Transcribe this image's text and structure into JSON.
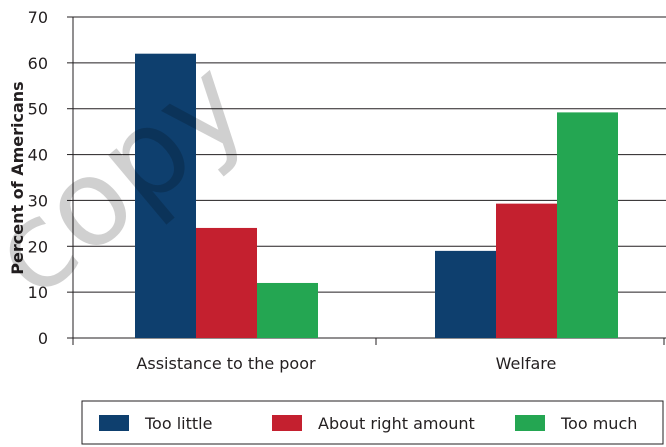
{
  "watermark": "copy",
  "chart_data": {
    "type": "bar",
    "categories": [
      "Assistance to the poor",
      "Welfare"
    ],
    "series": [
      {
        "name": "Too little",
        "values": [
          62,
          19
        ],
        "color": "#0e3f6e"
      },
      {
        "name": "About right amount",
        "values": [
          24,
          29.3
        ],
        "color": "#c4202f"
      },
      {
        "name": "Too much",
        "values": [
          12,
          49.2
        ],
        "color": "#24a652"
      }
    ],
    "title": "",
    "xlabel": "",
    "ylabel": "Percent of Americans",
    "ylim": [
      0,
      70
    ],
    "yticks": [
      0,
      10,
      20,
      30,
      40,
      50,
      60,
      70
    ],
    "grid": true,
    "legend_position": "bottom"
  }
}
